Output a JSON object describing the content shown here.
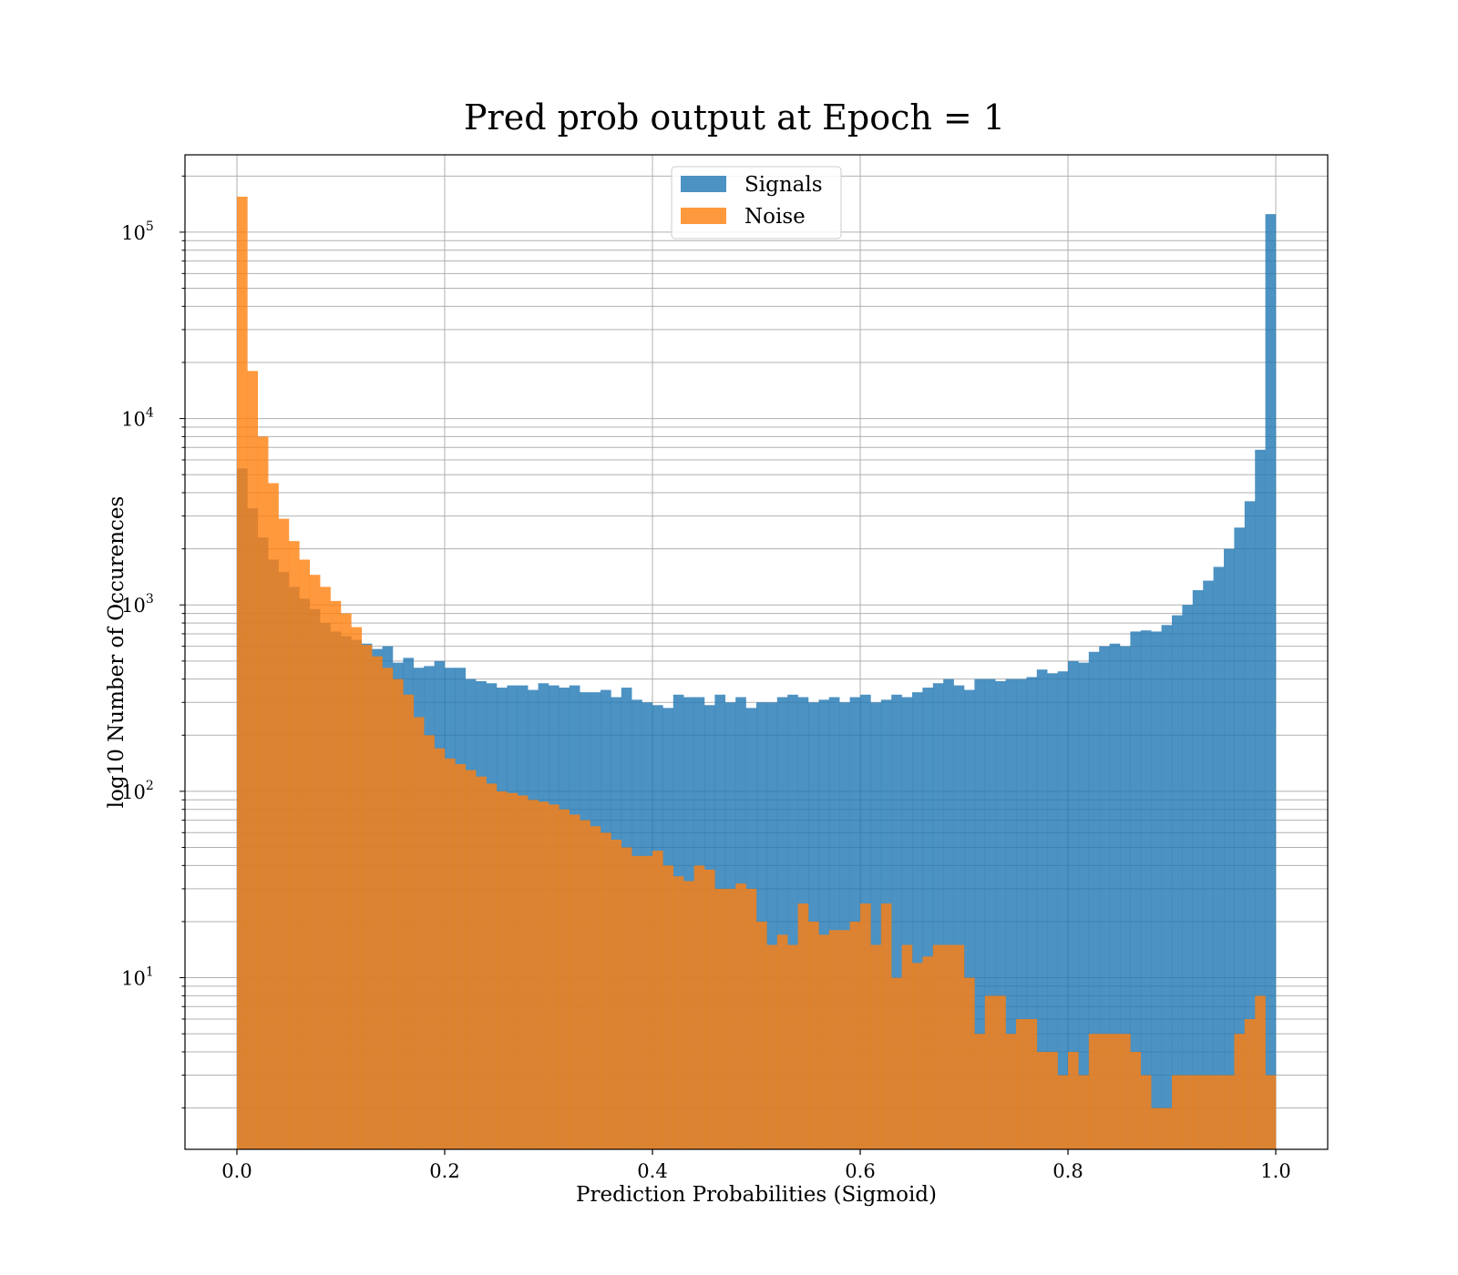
{
  "chart_data": {
    "type": "histogram",
    "title": "Pred prob output at Epoch = 1",
    "xlabel": "Prediction Probabilities (Sigmoid)",
    "ylabel": "log10 Number of Occurences",
    "xlim": [
      -0.05,
      1.05
    ],
    "ylim": [
      1.2,
      260000
    ],
    "yscale": "log",
    "grid": true,
    "legend_position": "upper center",
    "bin_edges": {
      "start": 0.0,
      "step": 0.01,
      "count": 100
    },
    "xticks": [
      {
        "value": 0.0,
        "label": "0.0"
      },
      {
        "value": 0.2,
        "label": "0.2"
      },
      {
        "value": 0.4,
        "label": "0.4"
      },
      {
        "value": 0.6,
        "label": "0.6"
      },
      {
        "value": 0.8,
        "label": "0.8"
      },
      {
        "value": 1.0,
        "label": "1.0"
      }
    ],
    "yticks": [
      {
        "value": 10,
        "base": "10",
        "exp": "1"
      },
      {
        "value": 100,
        "base": "10",
        "exp": "2"
      },
      {
        "value": 1000,
        "base": "10",
        "exp": "3"
      },
      {
        "value": 10000,
        "base": "10",
        "exp": "4"
      },
      {
        "value": 100000,
        "base": "10",
        "exp": "5"
      }
    ],
    "series": [
      {
        "name": "Signals",
        "color": "#1f77b4",
        "alpha": 0.8,
        "values": [
          5400,
          3300,
          2300,
          1750,
          1500,
          1250,
          1080,
          950,
          800,
          720,
          680,
          650,
          620,
          580,
          600,
          490,
          520,
          460,
          470,
          500,
          460,
          460,
          400,
          390,
          380,
          360,
          370,
          370,
          350,
          380,
          370,
          360,
          370,
          340,
          340,
          350,
          320,
          360,
          310,
          300,
          290,
          280,
          330,
          320,
          320,
          290,
          330,
          300,
          320,
          280,
          300,
          300,
          320,
          330,
          320,
          300,
          310,
          320,
          300,
          320,
          330,
          300,
          310,
          330,
          320,
          340,
          360,
          380,
          400,
          370,
          350,
          400,
          400,
          390,
          400,
          400,
          410,
          450,
          430,
          440,
          500,
          490,
          560,
          600,
          620,
          600,
          720,
          730,
          720,
          780,
          880,
          1000,
          1200,
          1350,
          1600,
          2000,
          2600,
          3600,
          6800,
          125000
        ]
      },
      {
        "name": "Noise",
        "color": "#ff7f0e",
        "alpha": 0.8,
        "values": [
          155000,
          18000,
          8000,
          4500,
          2900,
          2200,
          1750,
          1450,
          1250,
          1050,
          900,
          760,
          610,
          530,
          460,
          400,
          330,
          250,
          200,
          170,
          150,
          140,
          130,
          120,
          110,
          100,
          98,
          95,
          90,
          88,
          85,
          80,
          75,
          70,
          65,
          60,
          55,
          50,
          45,
          45,
          48,
          40,
          35,
          33,
          40,
          38,
          30,
          30,
          32,
          30,
          20,
          15,
          17,
          15,
          25,
          20,
          17,
          18,
          18,
          20,
          25,
          15,
          25,
          10,
          15,
          12,
          13,
          15,
          15,
          15,
          10,
          5,
          8,
          8,
          5,
          6,
          6,
          4,
          4,
          3,
          4,
          3,
          5,
          5,
          5,
          5,
          4,
          3,
          2,
          2,
          3,
          3,
          3,
          3,
          3,
          3,
          5,
          6,
          8,
          3
        ]
      }
    ]
  }
}
